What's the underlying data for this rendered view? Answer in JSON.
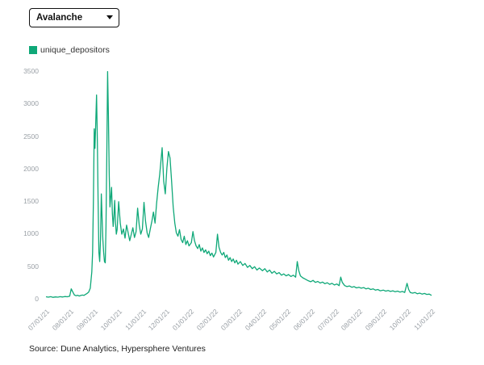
{
  "controls": {
    "chain_select": {
      "value": "Avalanche"
    }
  },
  "legend": {
    "label": "unique_depositors"
  },
  "footer": {
    "source": "Source: Dune Analytics, Hypersphere Ventures"
  },
  "chart_data": {
    "type": "line",
    "title": "",
    "xlabel": "",
    "ylabel": "",
    "grid": false,
    "legend_position": "top-left",
    "x_unit": "days since 2021-07-01",
    "x_range": [
      0,
      488
    ],
    "y_range": [
      0,
      3500
    ],
    "y_ticks": [
      0,
      500,
      1000,
      1500,
      2000,
      2500,
      3000,
      3500
    ],
    "x_tick_labels": [
      "07/01/21",
      "08/01/21",
      "09/01/21",
      "10/01/21",
      "11/01/21",
      "12/01/21",
      "01/01/22",
      "02/01/22",
      "03/01/22",
      "04/01/22",
      "05/01/22",
      "06/01/22",
      "07/01/22",
      "08/01/22",
      "09/01/22",
      "10/01/22",
      "11/01/22"
    ],
    "series": [
      {
        "name": "unique_depositors",
        "color": "#0FA878",
        "points": [
          [
            0,
            18
          ],
          [
            3,
            12
          ],
          [
            6,
            20
          ],
          [
            9,
            10
          ],
          [
            12,
            16
          ],
          [
            15,
            12
          ],
          [
            18,
            20
          ],
          [
            21,
            15
          ],
          [
            24,
            22
          ],
          [
            27,
            18
          ],
          [
            30,
            28
          ],
          [
            32,
            140
          ],
          [
            34,
            90
          ],
          [
            36,
            45
          ],
          [
            38,
            35
          ],
          [
            40,
            42
          ],
          [
            42,
            30
          ],
          [
            44,
            38
          ],
          [
            46,
            45
          ],
          [
            48,
            40
          ],
          [
            50,
            55
          ],
          [
            52,
            70
          ],
          [
            54,
            90
          ],
          [
            56,
            150
          ],
          [
            58,
            400
          ],
          [
            59,
            700
          ],
          [
            60,
            1500
          ],
          [
            61,
            2600
          ],
          [
            62,
            2300
          ],
          [
            63,
            2700
          ],
          [
            64,
            3120
          ],
          [
            65,
            2400
          ],
          [
            66,
            1500
          ],
          [
            67,
            700
          ],
          [
            68,
            560
          ],
          [
            69,
            900
          ],
          [
            70,
            1600
          ],
          [
            71,
            1250
          ],
          [
            72,
            900
          ],
          [
            73,
            700
          ],
          [
            74,
            560
          ],
          [
            75,
            540
          ],
          [
            76,
            1100
          ],
          [
            77,
            2200
          ],
          [
            78,
            3480
          ],
          [
            79,
            2800
          ],
          [
            80,
            1900
          ],
          [
            81,
            1400
          ],
          [
            82,
            1550
          ],
          [
            83,
            1700
          ],
          [
            84,
            1300
          ],
          [
            85,
            1100
          ],
          [
            86,
            1250
          ],
          [
            87,
            1500
          ],
          [
            88,
            1150
          ],
          [
            89,
            980
          ],
          [
            90,
            1050
          ],
          [
            92,
            1480
          ],
          [
            94,
            1150
          ],
          [
            96,
            980
          ],
          [
            98,
            1060
          ],
          [
            100,
            920
          ],
          [
            102,
            1120
          ],
          [
            104,
            1000
          ],
          [
            106,
            880
          ],
          [
            108,
            980
          ],
          [
            110,
            1080
          ],
          [
            112,
            930
          ],
          [
            114,
            1020
          ],
          [
            116,
            1380
          ],
          [
            118,
            1120
          ],
          [
            120,
            980
          ],
          [
            122,
            1060
          ],
          [
            124,
            1470
          ],
          [
            126,
            1180
          ],
          [
            128,
            1000
          ],
          [
            130,
            930
          ],
          [
            132,
            1060
          ],
          [
            134,
            1180
          ],
          [
            136,
            1320
          ],
          [
            138,
            1150
          ],
          [
            140,
            1450
          ],
          [
            142,
            1700
          ],
          [
            144,
            1900
          ],
          [
            147,
            2310
          ],
          [
            149,
            1800
          ],
          [
            151,
            1600
          ],
          [
            153,
            2000
          ],
          [
            155,
            2250
          ],
          [
            157,
            2150
          ],
          [
            159,
            1800
          ],
          [
            161,
            1400
          ],
          [
            163,
            1150
          ],
          [
            165,
            1000
          ],
          [
            167,
            950
          ],
          [
            169,
            1050
          ],
          [
            171,
            900
          ],
          [
            173,
            850
          ],
          [
            175,
            950
          ],
          [
            177,
            820
          ],
          [
            179,
            880
          ],
          [
            181,
            800
          ],
          [
            184,
            850
          ],
          [
            186,
            1020
          ],
          [
            188,
            880
          ],
          [
            190,
            800
          ],
          [
            192,
            760
          ],
          [
            194,
            820
          ],
          [
            196,
            720
          ],
          [
            198,
            770
          ],
          [
            200,
            700
          ],
          [
            202,
            740
          ],
          [
            204,
            680
          ],
          [
            206,
            720
          ],
          [
            208,
            650
          ],
          [
            210,
            690
          ],
          [
            212,
            630
          ],
          [
            215,
            700
          ],
          [
            217,
            980
          ],
          [
            219,
            780
          ],
          [
            221,
            700
          ],
          [
            223,
            660
          ],
          [
            225,
            700
          ],
          [
            227,
            620
          ],
          [
            229,
            660
          ],
          [
            231,
            580
          ],
          [
            233,
            620
          ],
          [
            235,
            560
          ],
          [
            237,
            600
          ],
          [
            239,
            540
          ],
          [
            241,
            580
          ],
          [
            243,
            520
          ],
          [
            246,
            560
          ],
          [
            249,
            500
          ],
          [
            252,
            530
          ],
          [
            255,
            470
          ],
          [
            258,
            500
          ],
          [
            261,
            450
          ],
          [
            264,
            480
          ],
          [
            267,
            430
          ],
          [
            270,
            460
          ],
          [
            274,
            420
          ],
          [
            277,
            450
          ],
          [
            280,
            400
          ],
          [
            283,
            430
          ],
          [
            286,
            380
          ],
          [
            289,
            410
          ],
          [
            292,
            370
          ],
          [
            295,
            390
          ],
          [
            298,
            350
          ],
          [
            301,
            370
          ],
          [
            304,
            340
          ],
          [
            307,
            360
          ],
          [
            310,
            330
          ],
          [
            313,
            350
          ],
          [
            316,
            320
          ],
          [
            318,
            560
          ],
          [
            320,
            420
          ],
          [
            322,
            340
          ],
          [
            325,
            310
          ],
          [
            328,
            290
          ],
          [
            331,
            270
          ],
          [
            335,
            250
          ],
          [
            338,
            270
          ],
          [
            341,
            240
          ],
          [
            344,
            255
          ],
          [
            347,
            230
          ],
          [
            350,
            245
          ],
          [
            353,
            220
          ],
          [
            356,
            235
          ],
          [
            359,
            210
          ],
          [
            362,
            225
          ],
          [
            365,
            200
          ],
          [
            368,
            215
          ],
          [
            371,
            190
          ],
          [
            373,
            320
          ],
          [
            375,
            240
          ],
          [
            378,
            190
          ],
          [
            381,
            175
          ],
          [
            384,
            185
          ],
          [
            387,
            165
          ],
          [
            390,
            175
          ],
          [
            393,
            155
          ],
          [
            396,
            165
          ],
          [
            399,
            150
          ],
          [
            402,
            160
          ],
          [
            405,
            140
          ],
          [
            408,
            150
          ],
          [
            411,
            130
          ],
          [
            414,
            140
          ],
          [
            417,
            120
          ],
          [
            420,
            130
          ],
          [
            423,
            110
          ],
          [
            427,
            120
          ],
          [
            430,
            105
          ],
          [
            433,
            115
          ],
          [
            436,
            100
          ],
          [
            439,
            110
          ],
          [
            442,
            95
          ],
          [
            445,
            105
          ],
          [
            448,
            90
          ],
          [
            451,
            100
          ],
          [
            454,
            85
          ],
          [
            457,
            225
          ],
          [
            459,
            130
          ],
          [
            461,
            85
          ],
          [
            464,
            75
          ],
          [
            467,
            85
          ],
          [
            470,
            65
          ],
          [
            473,
            75
          ],
          [
            476,
            60
          ],
          [
            479,
            70
          ],
          [
            482,
            55
          ],
          [
            485,
            60
          ],
          [
            488,
            40
          ]
        ]
      }
    ]
  }
}
